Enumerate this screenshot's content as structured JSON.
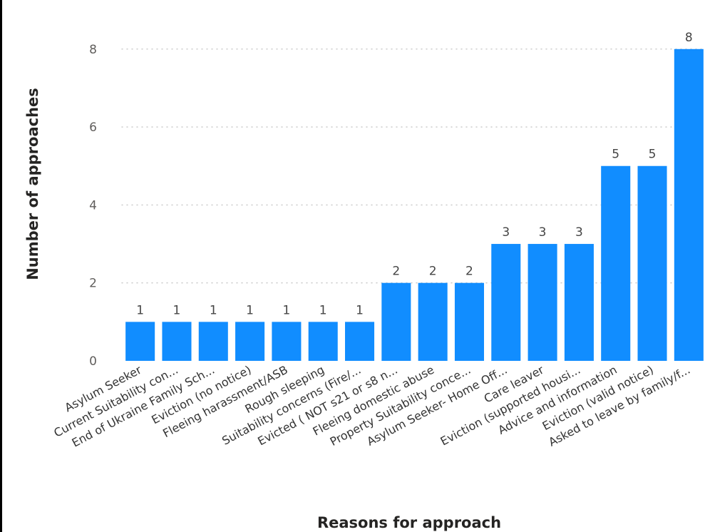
{
  "chart_data": {
    "type": "bar",
    "xlabel": "Reasons for approach",
    "ylabel": "Number of approaches",
    "ylim": [
      0,
      8.6
    ],
    "yticks": [
      0,
      2,
      4,
      6,
      8
    ],
    "grid": true,
    "bar_color": "#118DFF",
    "categories": [
      "Asylum Seeker",
      "Current Suitability con...",
      "End of Ukraine Family Sch...",
      "Eviction (no notice)",
      "Fleeing harassment/ASB",
      "Rough sleeping",
      "Suitability concerns (Fire/...",
      "Evicted ( NOT s21 or s8 n...",
      "Fleeing domestic abuse",
      "Property Suitability conce...",
      "Asylum Seeker- Home Off...",
      "Care leaver",
      "Eviction (supported housi...",
      "Advice and information",
      "Eviction (valid notice)",
      "Asked to leave by family/f..."
    ],
    "values": [
      1,
      1,
      1,
      1,
      1,
      1,
      1,
      2,
      2,
      2,
      3,
      3,
      3,
      5,
      5,
      8
    ]
  }
}
